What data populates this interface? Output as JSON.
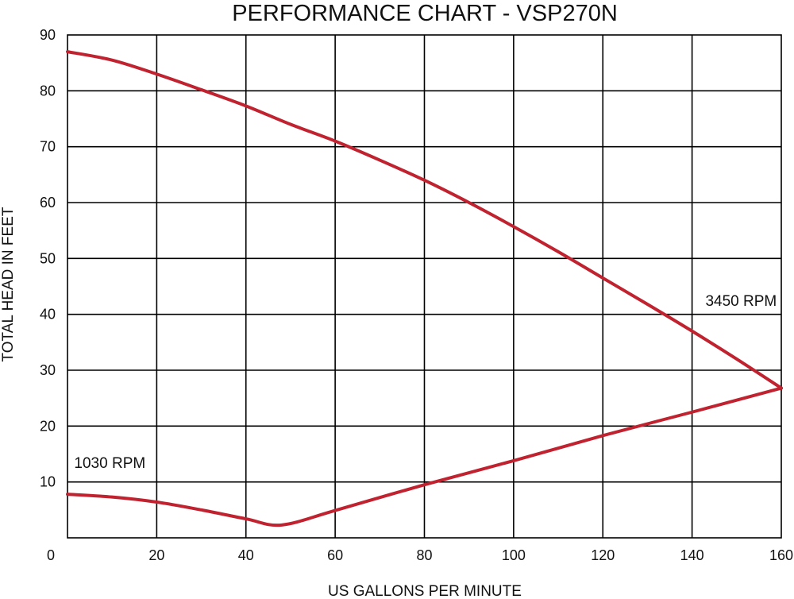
{
  "chart_data": {
    "type": "line",
    "title": "PERFORMANCE CHART - VSP270N",
    "xlabel": "US GALLONS PER MINUTE",
    "ylabel": "TOTAL HEAD IN FEET",
    "xlim": [
      0,
      160
    ],
    "ylim": [
      0,
      90
    ],
    "xticks": [
      0,
      20,
      40,
      60,
      80,
      100,
      120,
      140,
      160
    ],
    "yticks": [
      10,
      20,
      30,
      40,
      50,
      60,
      70,
      80,
      90
    ],
    "xtick_labels": [
      "0",
      "20",
      "40",
      "60",
      "80",
      "100",
      "120",
      "140",
      "160"
    ],
    "ytick_labels": [
      "10",
      "20",
      "30",
      "40",
      "50",
      "60",
      "70",
      "80",
      "90"
    ],
    "grid": true,
    "line_color": "#c0232f",
    "series": [
      {
        "name": "3450 RPM",
        "x": [
          0,
          10,
          20,
          30,
          40,
          50,
          60,
          70,
          80,
          90,
          100,
          110,
          120,
          130,
          140,
          150,
          160
        ],
        "y": [
          87,
          85.5,
          83,
          80.2,
          77.3,
          74,
          71,
          67.6,
          64,
          60,
          55.7,
          51.2,
          46.5,
          41.8,
          37,
          32,
          26.8
        ]
      },
      {
        "name": "1030 RPM",
        "x": [
          0,
          10,
          20,
          30,
          40,
          48,
          60,
          80,
          100,
          120,
          140,
          160
        ],
        "y": [
          7.8,
          7.3,
          6.4,
          5,
          3.4,
          2.3,
          4.9,
          9.5,
          13.8,
          18.3,
          22.5,
          26.8
        ]
      }
    ],
    "annotations": [
      {
        "text": "3450 RPM",
        "x": 143,
        "y": 41.5
      },
      {
        "text": "1030 RPM",
        "x": 1.5,
        "y": 12.5
      }
    ]
  }
}
